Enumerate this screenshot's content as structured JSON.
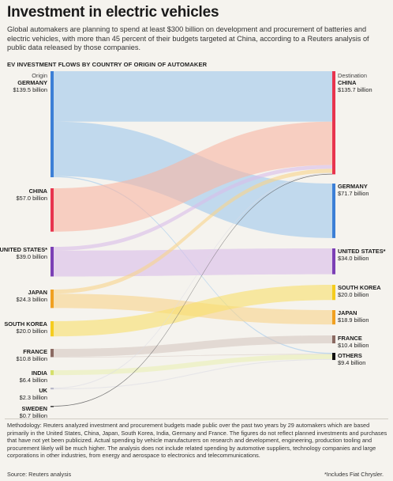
{
  "title": "Investment in electric vehicles",
  "subtitle": "Global automakers are planning to spend at least $300 billion on development and procurement of batteries and electric vehicles, with more than 45 percent of their budgets targeted at China, according to a Reuters analysis of public data released by those companies.",
  "section_heading": "EV INVESTMENT FLOWS BY COUNTRY OF ORIGIN OF AUTOMAKER",
  "methodology": "Methodology: Reuters analyzed investment and procurement budgets made public over the past two years by 29 automakers which are based primarily in the United States, China, Japan, South Korea, India, Germany and France. The figures do not reflect planned investments and purchases that have not yet been publicized. Actual spending by vehicle manufacturers on research and development, engineering, production tooling and procurement likely will be much higher. The analysis does not include related spending by automotive suppliers, technology companies and large corporations in other industries, from energy and aerospace to electronics and telecommunications.",
  "source": "Source: Reuters analysis",
  "footnote": "*Includes Fiat Chrysler.",
  "chart_data": {
    "type": "sankey",
    "unit": "billion USD",
    "left_header": "Origin",
    "right_header": "Destination",
    "origins": [
      {
        "name": "GERMANY",
        "value_label": "$139.5 billion",
        "value": 139.5,
        "color": "#3c7fd6"
      },
      {
        "name": "CHINA",
        "value_label": "$57.0 billion",
        "value": 57.0,
        "color": "#e8344e"
      },
      {
        "name": "UNITED STATES*",
        "value_label": "$39.0 billion",
        "value": 39.0,
        "color": "#7b3fb5"
      },
      {
        "name": "JAPAN",
        "value_label": "$24.3 billion",
        "value": 24.3,
        "color": "#f0a020"
      },
      {
        "name": "SOUTH KOREA",
        "value_label": "$20.0 billion",
        "value": 20.0,
        "color": "#f5cc1e"
      },
      {
        "name": "FRANCE",
        "value_label": "$10.8 billion",
        "value": 10.8,
        "color": "#8b6a62"
      },
      {
        "name": "INDIA",
        "value_label": "$6.4 billion",
        "value": 6.4,
        "color": "#d5e06a"
      },
      {
        "name": "UK",
        "value_label": "$2.3 billion",
        "value": 2.3,
        "color": "#b8b8c8"
      },
      {
        "name": "SWEDEN",
        "value_label": "$0.7 billion",
        "value": 0.7,
        "color": "#444444"
      }
    ],
    "destinations": [
      {
        "name": "CHINA",
        "value_label": "$135.7 billion",
        "value": 135.7,
        "color": "#e8344e"
      },
      {
        "name": "GERMANY",
        "value_label": "$71.7 billion",
        "value": 71.7,
        "color": "#3c7fd6"
      },
      {
        "name": "UNITED STATES*",
        "value_label": "$34.0 billion",
        "value": 34.0,
        "color": "#7b3fb5"
      },
      {
        "name": "SOUTH KOREA",
        "value_label": "$20.0 billion",
        "value": 20.0,
        "color": "#f5cc1e"
      },
      {
        "name": "JAPAN",
        "value_label": "$18.9 billion",
        "value": 18.9,
        "color": "#f0a020"
      },
      {
        "name": "FRANCE",
        "value_label": "$10.4 billion",
        "value": 10.4,
        "color": "#8b6a62"
      },
      {
        "name": "OTHERS",
        "value_label": "$9.4 billion",
        "value": 9.4,
        "color": "#111111"
      }
    ],
    "flows": [
      {
        "from": "GERMANY",
        "to": "CHINA",
        "value": 66.4,
        "color": "#9ec8ec"
      },
      {
        "from": "GERMANY",
        "to": "GERMANY",
        "value": 71.7,
        "color": "#9ec8ec"
      },
      {
        "from": "GERMANY",
        "to": "OTHERS",
        "value": 1.4,
        "color": "#9ec8ec"
      },
      {
        "from": "CHINA",
        "to": "CHINA",
        "value": 57.0,
        "color": "#f8b6a4"
      },
      {
        "from": "UNITED STATES*",
        "to": "CHINA",
        "value": 5.0,
        "color": "#d8bcea"
      },
      {
        "from": "UNITED STATES*",
        "to": "UNITED STATES*",
        "value": 34.0,
        "color": "#d8bcea"
      },
      {
        "from": "JAPAN",
        "to": "CHINA",
        "value": 5.4,
        "color": "#f8d48a"
      },
      {
        "from": "JAPAN",
        "to": "JAPAN",
        "value": 18.9,
        "color": "#f8d48a"
      },
      {
        "from": "SOUTH KOREA",
        "to": "SOUTH KOREA",
        "value": 20.0,
        "color": "#f8e06a"
      },
      {
        "from": "FRANCE",
        "to": "FRANCE",
        "value": 10.4,
        "color": "#d6c8c2"
      },
      {
        "from": "FRANCE",
        "to": "OTHERS",
        "value": 0.4,
        "color": "#d6c8c2"
      },
      {
        "from": "INDIA",
        "to": "OTHERS",
        "value": 6.4,
        "color": "#eaf0b4"
      },
      {
        "from": "UK",
        "to": "CHINA",
        "value": 1.2,
        "color": "#dcdce4"
      },
      {
        "from": "UK",
        "to": "OTHERS",
        "value": 1.1,
        "color": "#dcdce4"
      },
      {
        "from": "SWEDEN",
        "to": "CHINA",
        "value": 0.7,
        "color": "#666666"
      }
    ]
  }
}
